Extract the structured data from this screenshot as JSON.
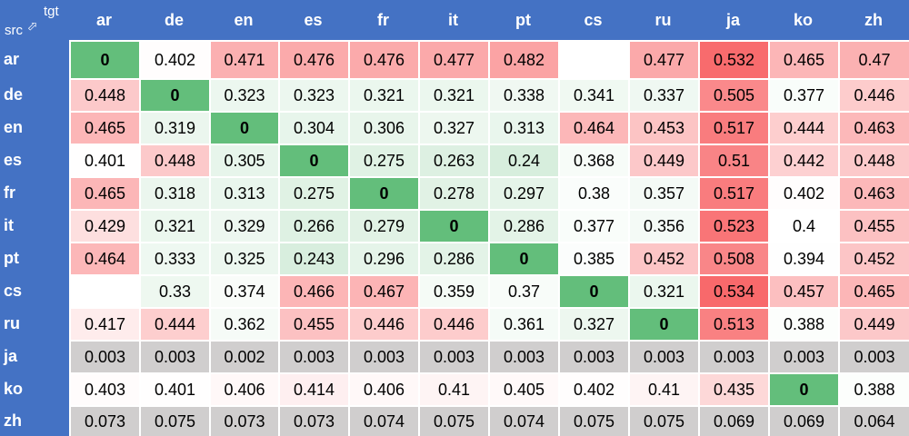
{
  "chart_data": {
    "type": "heatmap",
    "corner_row_label": "src",
    "corner_col_label": "tgt",
    "corner_arrow": "⇨",
    "columns": [
      "ar",
      "de",
      "en",
      "es",
      "fr",
      "it",
      "pt",
      "cs",
      "ru",
      "ja",
      "ko",
      "zh"
    ],
    "rows": [
      "ar",
      "de",
      "en",
      "es",
      "fr",
      "it",
      "pt",
      "cs",
      "ru",
      "ja",
      "ko",
      "zh"
    ],
    "values": [
      [
        "0",
        "0.402",
        "0.471",
        "0.476",
        "0.476",
        "0.477",
        "0.482",
        "",
        "0.477",
        "0.532",
        "0.465",
        "0.47"
      ],
      [
        "0.448",
        "0",
        "0.323",
        "0.323",
        "0.321",
        "0.321",
        "0.338",
        "0.341",
        "0.337",
        "0.505",
        "0.377",
        "0.446"
      ],
      [
        "0.465",
        "0.319",
        "0",
        "0.304",
        "0.306",
        "0.327",
        "0.313",
        "0.464",
        "0.453",
        "0.517",
        "0.444",
        "0.463"
      ],
      [
        "0.401",
        "0.448",
        "0.305",
        "0",
        "0.275",
        "0.263",
        "0.24",
        "0.368",
        "0.449",
        "0.51",
        "0.442",
        "0.448"
      ],
      [
        "0.465",
        "0.318",
        "0.313",
        "0.275",
        "0",
        "0.278",
        "0.297",
        "0.38",
        "0.357",
        "0.517",
        "0.402",
        "0.463"
      ],
      [
        "0.429",
        "0.321",
        "0.329",
        "0.266",
        "0.279",
        "0",
        "0.286",
        "0.377",
        "0.356",
        "0.523",
        "0.4",
        "0.455"
      ],
      [
        "0.464",
        "0.333",
        "0.325",
        "0.243",
        "0.296",
        "0.286",
        "0",
        "0.385",
        "0.452",
        "0.508",
        "0.394",
        "0.452"
      ],
      [
        "",
        "0.33",
        "0.374",
        "0.466",
        "0.467",
        "0.359",
        "0.37",
        "0",
        "0.321",
        "0.534",
        "0.457",
        "0.465"
      ],
      [
        "0.417",
        "0.444",
        "0.362",
        "0.455",
        "0.446",
        "0.446",
        "0.361",
        "0.327",
        "0",
        "0.513",
        "0.388",
        "0.449"
      ],
      [
        "0.003",
        "0.003",
        "0.002",
        "0.003",
        "0.003",
        "0.003",
        "0.003",
        "0.003",
        "0.003",
        "0.003",
        "0.003",
        "0.003"
      ],
      [
        "0.403",
        "0.401",
        "0.406",
        "0.414",
        "0.406",
        "0.41",
        "0.405",
        "0.402",
        "0.41",
        "0.435",
        "0",
        "0.388"
      ],
      [
        "0.073",
        "0.075",
        "0.073",
        "0.073",
        "0.074",
        "0.075",
        "0.074",
        "0.075",
        "0.075",
        "0.069",
        "0.069",
        "0.064"
      ]
    ],
    "gray_rows": [
      "ja",
      "zh"
    ],
    "colors": {
      "header": "#4472c4",
      "diagonal": "#63be7b",
      "gray_row": "#d0cece",
      "low": "#d7eedd",
      "mid": "#ffffff",
      "high": "#f8696b"
    }
  }
}
